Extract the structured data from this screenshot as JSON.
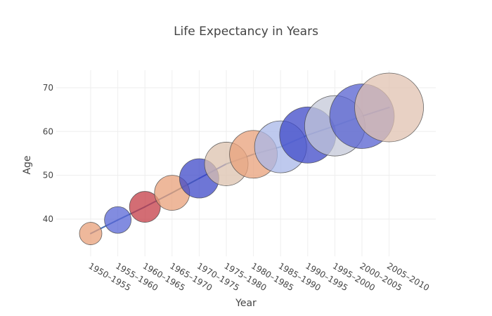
{
  "chart_data": {
    "type": "scatter",
    "title": "Life Expectancy in Years",
    "xlabel": "Year",
    "ylabel": "Age",
    "grid": true,
    "legend": "none",
    "categories": [
      "1950–1955",
      "1955–1960",
      "1960–1965",
      "1965–1970",
      "1970–1975",
      "1975–1980",
      "1980–1985",
      "1985–1990",
      "1990–1995",
      "1995–2000",
      "2000–2005",
      "2005–2010"
    ],
    "values": [
      36.7,
      39.8,
      42.8,
      46.0,
      49.3,
      52.6,
      54.8,
      56.5,
      59.2,
      61.3,
      63.5,
      65.5
    ],
    "y_ticks": [
      40,
      50,
      60,
      70
    ],
    "ylim": [
      31.5,
      74
    ],
    "bubble_size_rank": [
      1,
      2,
      3,
      4,
      5,
      6,
      7,
      8,
      9,
      10,
      11,
      12
    ],
    "colors": [
      "#e8a07a",
      "#5865d6",
      "#c43c46",
      "#e8a07a",
      "#3e48c8",
      "#dcc1ae",
      "#e8a07a",
      "#a8b7e8",
      "#3e48c8",
      "#c4c8d8",
      "#5660d0",
      "#e0c2b0"
    ],
    "line_colors": [
      "#4a6fb5",
      "#4a6fb5",
      "#4a6fb5",
      "#5a7fa0",
      "#3e56c0",
      "#6d8fb0",
      "#8fa0b6",
      "#6a9fdb",
      "#2d47c4",
      "#7aa6d8",
      "#3f5dd0",
      "#9fb6d4"
    ]
  }
}
